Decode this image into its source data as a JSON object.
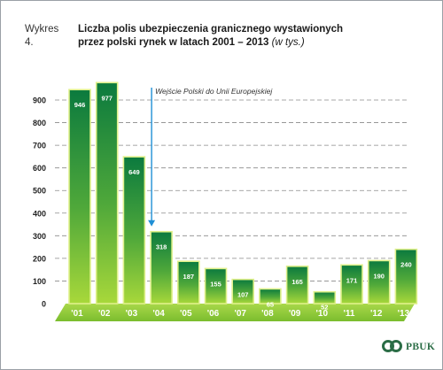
{
  "title": {
    "prefix": "Wykres 4.",
    "line1": "Liczba polis ubezpieczenia granicznego wystawionych",
    "line2_bold": "przez polski rynek w latach 2001 – 2013",
    "line2_italic": "(w tys.)"
  },
  "annotation": "Wejście Polski do Unii Europejskiej",
  "brand": {
    "name": "PBUK",
    "logo_icon": "pbuk-logo-icon"
  },
  "colors": {
    "bar_dark": "#0b7a3e",
    "bar_light": "#a4d63a",
    "bar_rim": "#dff08a",
    "axis_band": "#8cc63f",
    "arrow": "#1f8fd6",
    "gridline": "#8a8a8a",
    "logo_green": "#2b6d46"
  },
  "chart_data": {
    "type": "bar",
    "categories": [
      "'01",
      "'02",
      "'03",
      "'04",
      "'05",
      "'06",
      "'07",
      "'08",
      "'09",
      "'10",
      "'11",
      "'12",
      "'13"
    ],
    "values": [
      946,
      977,
      649,
      318,
      187,
      155,
      107,
      65,
      165,
      52,
      171,
      190,
      240
    ],
    "yticks": [
      0,
      100,
      200,
      300,
      400,
      500,
      600,
      700,
      800,
      900
    ],
    "ylim": [
      0,
      1000
    ],
    "grid": true,
    "xlabel": "",
    "ylabel": "",
    "annotation_category": "'04"
  }
}
